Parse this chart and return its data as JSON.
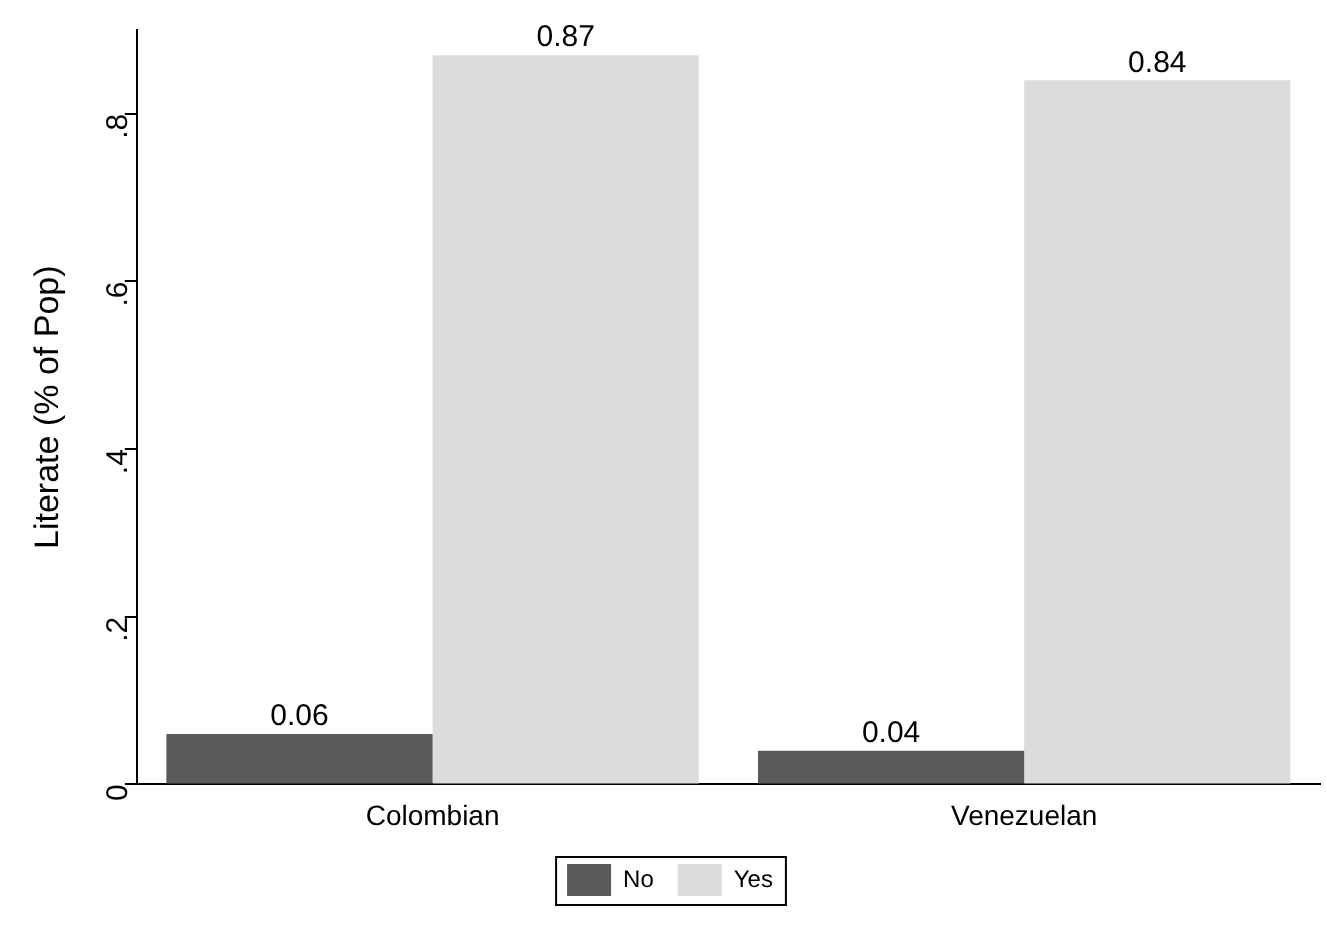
{
  "chart_data": {
    "type": "bar",
    "ylabel": "Literate (% of Pop)",
    "categories": [
      "Colombian",
      "Venezuelan"
    ],
    "series": [
      {
        "name": "No",
        "color": "#5a5a5a",
        "values": [
          0.06,
          0.04
        ]
      },
      {
        "name": "Yes",
        "color": "#dcdcdc",
        "values": [
          0.87,
          0.84
        ]
      }
    ],
    "ylim": [
      0,
      0.9
    ],
    "yticks": [
      {
        "value": 0,
        "label": "0"
      },
      {
        "value": 0.2,
        "label": ".2"
      },
      {
        "value": 0.4,
        "label": ".4"
      },
      {
        "value": 0.6,
        "label": ".6"
      },
      {
        "value": 0.8,
        "label": ".8"
      }
    ],
    "grid": false,
    "legend": "bottom",
    "data_labels": true
  }
}
